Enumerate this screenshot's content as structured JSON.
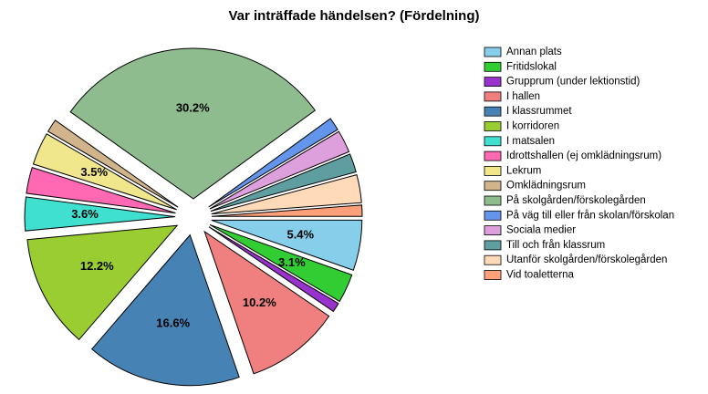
{
  "chart_data": {
    "type": "pie",
    "title": "Var inträffade händelsen? (Fördelning)",
    "categories": [
      "Annan plats",
      "Fritidslokal",
      "Grupprum (under lektionstid)",
      "I hallen",
      "I klassrummet",
      "I korridoren",
      "I matsalen",
      "Idrottshallen (ej omklädningsrum)",
      "Lekrum",
      "Omklädningsrum",
      "På skolgården/förskolegården",
      "På väg till eller från skolan/förskolan",
      "Sociala medier",
      "Till och från klassrum",
      "Utanför skolgården/förskolegården",
      "Vid toaletterna"
    ],
    "values": [
      5.4,
      3.1,
      1.0,
      10.2,
      16.6,
      12.2,
      3.6,
      2.8,
      3.5,
      1.4,
      30.2,
      1.4,
      2.4,
      2.0,
      3.0,
      1.2
    ],
    "value_labels": [
      "5.4%",
      "3.1%",
      null,
      "10.2%",
      "16.6%",
      "12.2%",
      "3.6%",
      null,
      "3.5%",
      null,
      "30.2%",
      null,
      null,
      null,
      null,
      null
    ],
    "colors": [
      "#87ceeb",
      "#32cd32",
      "#9932cc",
      "#f08080",
      "#4682b4",
      "#9acd32",
      "#40e0d0",
      "#ff69b4",
      "#f0e68c",
      "#d2b48c",
      "#8fbc8f",
      "#6495ed",
      "#dda0dd",
      "#5f9ea0",
      "#ffdab9",
      "#ffa07a"
    ],
    "legend": "right"
  }
}
